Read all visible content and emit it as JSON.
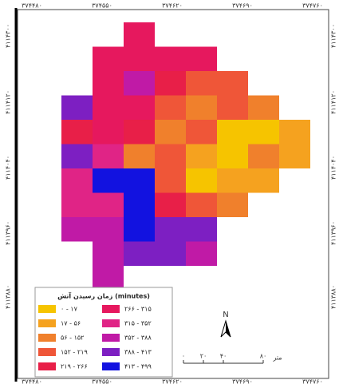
{
  "map": {
    "top_labels": [
      "۳۷۴۴۸۰",
      "۳۷۴۵۵۰",
      "۳۷۴۶۲۰",
      "۳۷۴۶۹۰",
      "۳۷۴۷۶۰"
    ],
    "left_labels": [
      "۴۱۱۴۳۰۰",
      "۴۱۱۴۱۲۰",
      "۴۱۱۴۰۴۰",
      "۴۱۱۳۹۶۰",
      "۴۱۱۳۸۸۰"
    ],
    "bottom_labels": [
      "۳۷۴۴۸۰",
      "۳۷۴۵۵۰",
      "۳۷۴۶۲۰",
      "۳۷۴۶۹۰",
      "۳۷۴۷۶۰"
    ],
    "legend": {
      "title": "زمان رسیدن آتش (minutes)",
      "classes": [
        {
          "label": "۰ - ۱۷",
          "color": "#f6c400"
        },
        {
          "label": "۱۷ - ۵۶",
          "color": "#f5a21f"
        },
        {
          "label": "۵۶ - ۱۵۲",
          "color": "#f0802c"
        },
        {
          "label": "۱۵۲ - ۲۱۹",
          "color": "#ef5638"
        },
        {
          "label": "۲۱۹ - ۲۶۶",
          "color": "#e81f48"
        },
        {
          "label": "۲۶۶ - ۳۱۵",
          "color": "#e6185e"
        },
        {
          "label": "۳۱۵ - ۳۵۲",
          "color": "#e02486"
        },
        {
          "label": "۳۵۲ - ۳۸۸",
          "color": "#c01aa6"
        },
        {
          "label": "۳۸۸ - ۴۱۳",
          "color": "#7d1fc2"
        },
        {
          "label": "۴۱۳ - ۴۹۹",
          "color": "#1212e0"
        }
      ]
    },
    "grid": [
      [
        null,
        null,
        5,
        null,
        null,
        null,
        null,
        null
      ],
      [
        null,
        5,
        5,
        5,
        5,
        null,
        null,
        null
      ],
      [
        null,
        5,
        7,
        4,
        3,
        3,
        null,
        null
      ],
      [
        8,
        5,
        5,
        3,
        2,
        3,
        2,
        null
      ],
      [
        4,
        5,
        4,
        2,
        3,
        0,
        0,
        1
      ],
      [
        8,
        6,
        2,
        3,
        1,
        0,
        2,
        1
      ],
      [
        6,
        9,
        9,
        3,
        0,
        1,
        1,
        null
      ],
      [
        6,
        6,
        9,
        4,
        3,
        2,
        null,
        null
      ],
      [
        7,
        7,
        9,
        8,
        8,
        null,
        null,
        null
      ],
      [
        null,
        7,
        8,
        8,
        7,
        null,
        null,
        null
      ],
      [
        null,
        7,
        null,
        null,
        null,
        null,
        null,
        null
      ]
    ],
    "scale": {
      "ticks": [
        "۰",
        "۲۰",
        "۴۰",
        "۸۰"
      ],
      "unit": "متر"
    },
    "north": "N"
  }
}
